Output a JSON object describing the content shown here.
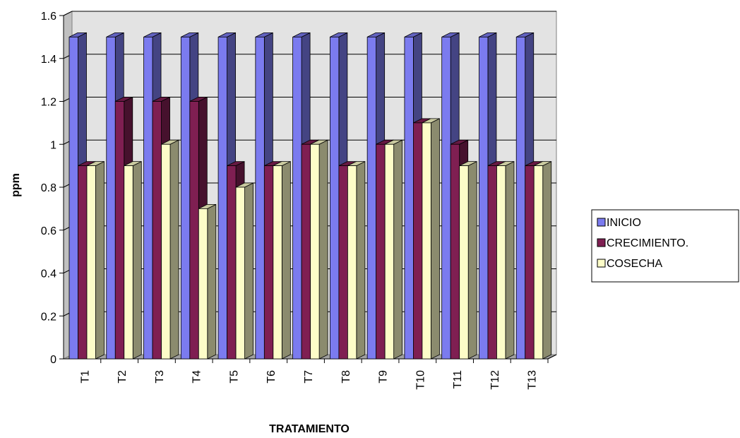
{
  "chart_data": {
    "type": "bar",
    "title": "",
    "xlabel": "TRATAMIENTO",
    "ylabel": "ppm",
    "ylim": [
      0,
      1.6
    ],
    "yticks": [
      "0",
      "0.2",
      "0.4",
      "0.6",
      "0.8",
      "1",
      "1.2",
      "1.4",
      "1.6"
    ],
    "grid": true,
    "legend_position": "right",
    "categories": [
      "T1",
      "T2",
      "T3",
      "T4",
      "T5",
      "T6",
      "T7",
      "T8",
      "T9",
      "T10",
      "T11",
      "T12",
      "T13"
    ],
    "series": [
      {
        "name": "INICIO",
        "color": "#7b7bef",
        "values": [
          1.5,
          1.5,
          1.5,
          1.5,
          1.5,
          1.5,
          1.5,
          1.5,
          1.5,
          1.5,
          1.5,
          1.5,
          1.5
        ]
      },
      {
        "name": "CRECIMIENTO.",
        "color": "#7f1f52",
        "values": [
          0.9,
          1.2,
          1.2,
          1.2,
          0.9,
          0.9,
          1.0,
          0.9,
          1.0,
          1.1,
          1.0,
          0.9,
          0.9
        ]
      },
      {
        "name": "COSECHA",
        "color": "#fdfdc8",
        "values": [
          0.9,
          0.9,
          1.0,
          0.7,
          0.8,
          0.9,
          1.0,
          0.9,
          1.0,
          1.1,
          0.9,
          0.9,
          0.9
        ]
      }
    ]
  }
}
